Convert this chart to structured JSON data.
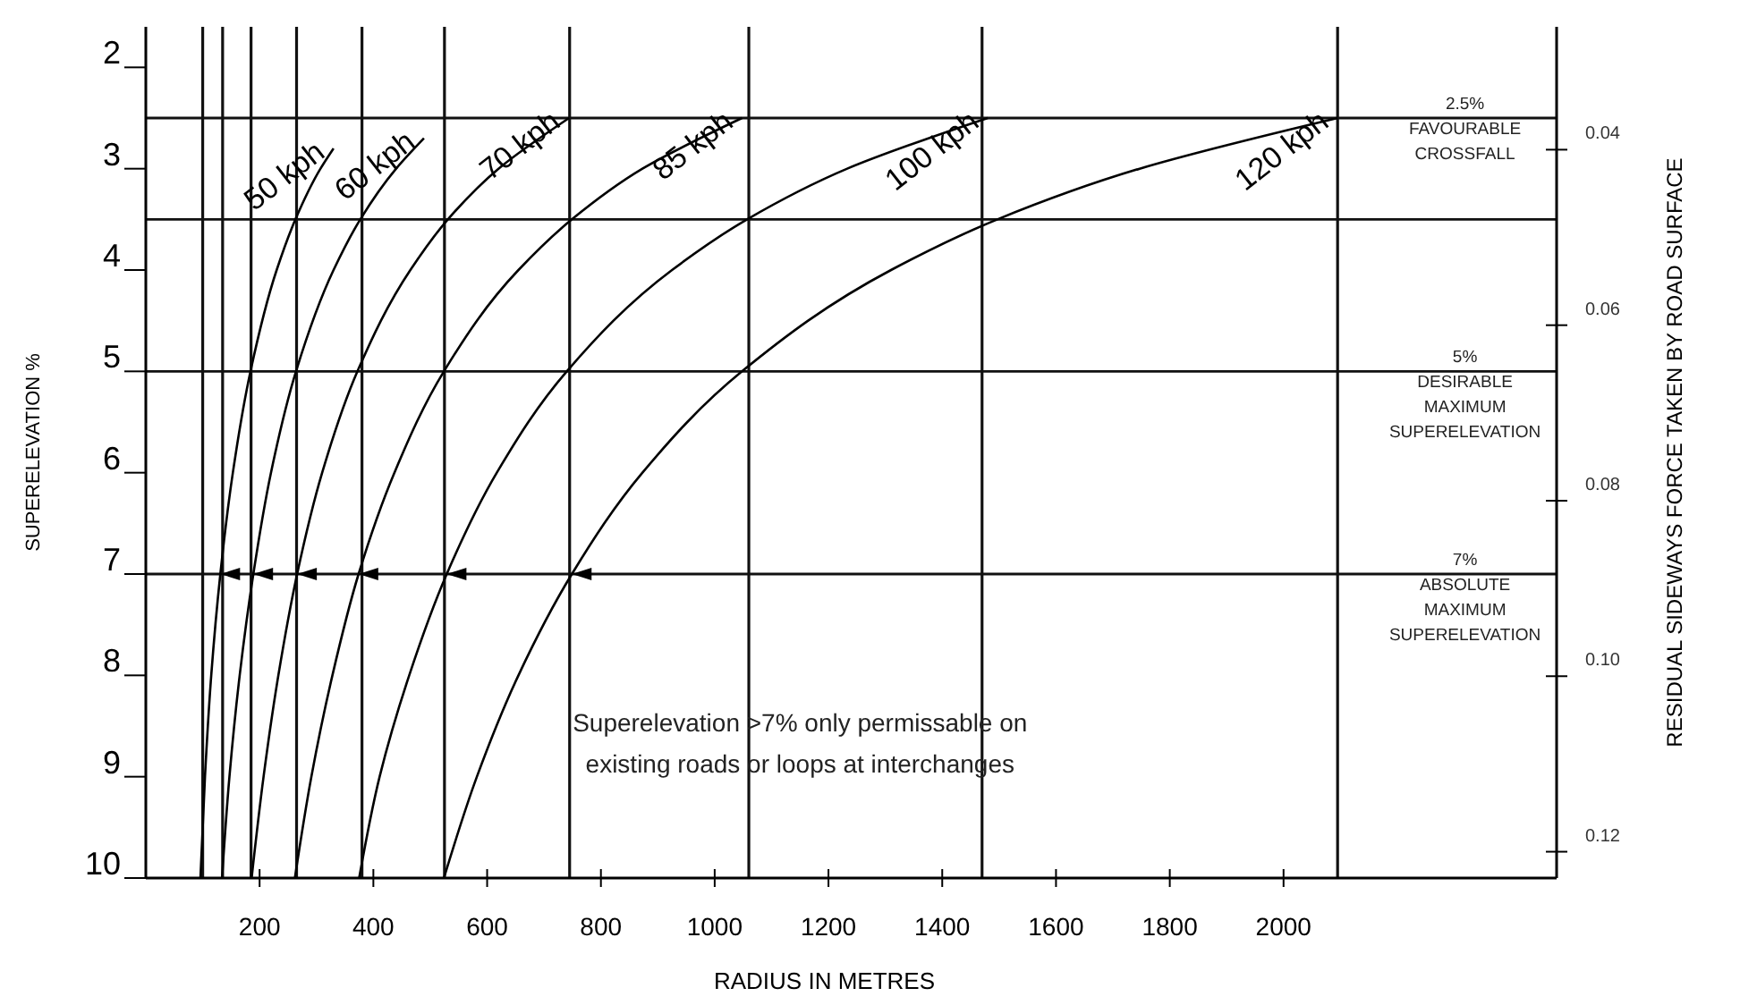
{
  "chart_data": {
    "type": "line",
    "xlabel": "RADIUS IN METRES",
    "ylabel": "SUPERELEVATION %",
    "y2label": "RESIDUAL SIDEWAYS FORCE TAKEN BY ROAD SURFACE",
    "xlim": [
      0,
      2480
    ],
    "xticks": [
      200,
      400,
      600,
      800,
      1000,
      1200,
      1400,
      1600,
      1800,
      2000
    ],
    "ylim": [
      10,
      1.6
    ],
    "yticks": [
      2,
      3,
      4,
      5,
      6,
      7,
      8,
      9,
      10
    ],
    "y2lim": [
      0.123,
      0.026
    ],
    "y2ticks": [
      0.04,
      0.06,
      0.08,
      {
        "value": 0.1,
        "label": "0.10"
      },
      0.12
    ],
    "legend": false,
    "grid": false,
    "marker": "none",
    "line_style": "solid",
    "series": [
      {
        "name": "50 kph",
        "color": "#000000",
        "x": [
          330,
          307,
          263,
          230,
          184,
          153,
          131,
          115,
          104,
          96
        ],
        "values": [
          2.8,
          3,
          3.5,
          4,
          5,
          6,
          7,
          8,
          9,
          10
        ]
      },
      {
        "name": "60 kph",
        "color": "#000000",
        "x": [
          489,
          440,
          377,
          330,
          264,
          220,
          189,
          165,
          147,
          134
        ],
        "values": [
          2.7,
          3,
          3.5,
          4,
          5,
          6,
          7,
          8,
          9,
          10
        ]
      },
      {
        "name": "70 kph",
        "color": "#000000",
        "x": [
          744,
          620,
          531,
          465,
          372,
          310,
          266,
          233,
          207,
          186
        ],
        "values": [
          2.5,
          3,
          3.5,
          4,
          5,
          6,
          7,
          8,
          9,
          10
        ]
      },
      {
        "name": "85 kph",
        "color": "#000000",
        "x": [
          1048,
          873,
          749,
          655,
          524,
          437,
          374,
          328,
          291,
          262
        ],
        "values": [
          2.5,
          3,
          3.5,
          4,
          5,
          6,
          7,
          8,
          9,
          10
        ]
      },
      {
        "name": "100 kph",
        "color": "#000000",
        "x": [
          1480,
          1233,
          1057,
          925,
          740,
          617,
          529,
          463,
          411,
          375
        ],
        "values": [
          2.5,
          3,
          3.5,
          4,
          5,
          6,
          7,
          8,
          9,
          10
        ]
      },
      {
        "name": "120 kph",
        "color": "#000000",
        "x": [
          2095,
          1747,
          1497,
          1310,
          1048,
          873,
          749,
          655,
          582,
          524
        ],
        "values": [
          2.5,
          3,
          3.5,
          4,
          5,
          6,
          7,
          8,
          9,
          10
        ]
      }
    ],
    "ref_lines": [
      {
        "axis": "x",
        "value": 100
      },
      {
        "axis": "x",
        "value": 135
      },
      {
        "axis": "x",
        "value": 185
      },
      {
        "axis": "x",
        "value": 265
      },
      {
        "axis": "x",
        "value": 380
      },
      {
        "axis": "x",
        "value": 525
      },
      {
        "axis": "x",
        "value": 745
      },
      {
        "axis": "x",
        "value": 1060
      },
      {
        "axis": "x",
        "value": 1470
      },
      {
        "axis": "x",
        "value": 2095
      },
      {
        "axis": "y",
        "value": 2.5,
        "label": "2.5%\nFAVOURABLE\nCROSSFALL"
      },
      {
        "axis": "y",
        "value": 3.5
      },
      {
        "axis": "y",
        "value": 5,
        "label": "5%\nDESIRABLE\nMAXIMUM\nSUPERELEVATION"
      },
      {
        "axis": "y",
        "value": 7,
        "label": "7%\nABSOLUTE\nMAXIMUM\nSUPERELEVATION"
      }
    ],
    "annotations": [
      "Superelevation >7% only permissable on\nexisting roads or loops at interchanges"
    ]
  }
}
